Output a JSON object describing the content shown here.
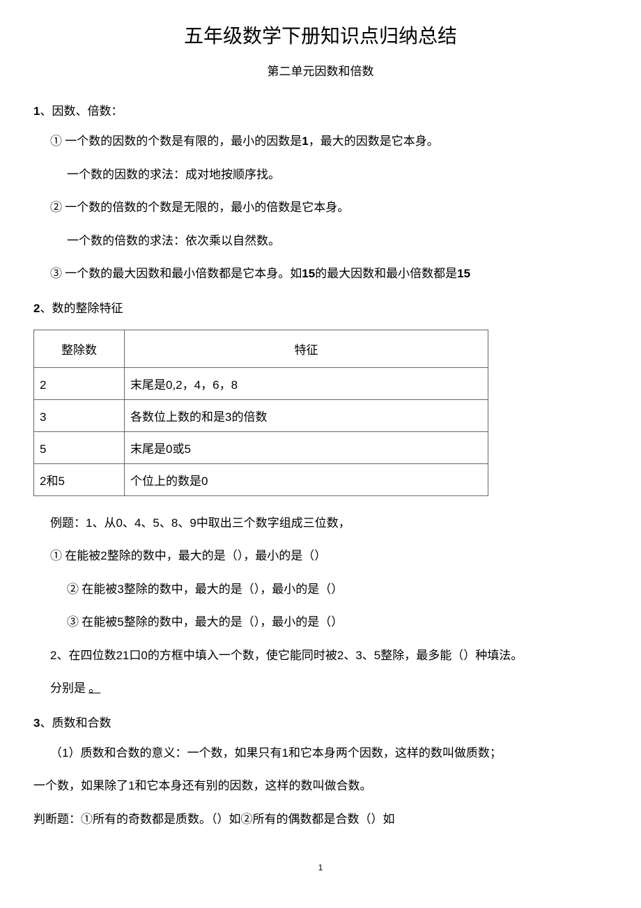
{
  "title": "五年级数学下册知识点归纳总结",
  "subtitle": "第二单元因数和倍数",
  "section1": {
    "num": "1",
    "heading": "、因数、倍数：",
    "item1_circled": "①",
    "item1_text": " 一个数的因数的个数是有限的，最小的因数是",
    "item1_num": "1",
    "item1_text2": "，最大的因数是它本身。",
    "item1b": "一个数的因数的求法：成对地按顺序找。",
    "item2_circled": "②",
    "item2_text": " 一个数的倍数的个数是无限的，最小的倍数是它本身。",
    "item2b": "一个数的倍数的求法：依次乘以自然数。",
    "item3_circled": "③",
    "item3_text": " 一个数的最大因数和最小倍数都是它本身。如",
    "item3_num1": "15",
    "item3_text2": "的最大因数和最小倍数都是",
    "item3_num2": "15"
  },
  "section2": {
    "num": "2",
    "heading": "、数的整除特征",
    "table": {
      "header1": "整除数",
      "header2": "特征",
      "rows": [
        {
          "col1": "2",
          "col2_a": "末尾是",
          "col2_b": "0,2",
          "col2_c": "，",
          "col2_d": "4",
          "col2_e": "，",
          "col2_f": "6",
          "col2_g": "，",
          "col2_h": "8"
        },
        {
          "col1": "3",
          "col2_a": "各数位上数的和是",
          "col2_b": "3",
          "col2_c": "的倍数"
        },
        {
          "col1": "5",
          "col2_a": "末尾是",
          "col2_b": "0",
          "col2_c": "或",
          "col2_d": "5"
        },
        {
          "col1_a": "2",
          "col1_b": "和",
          "col1_c": "5",
          "col2_a": "个位上的数是",
          "col2_b": "0"
        }
      ]
    },
    "example_label": "例题：",
    "example1_a": "1",
    "example1_b": "、从",
    "example1_c": "0",
    "example1_d": "、",
    "example1_e": "4",
    "example1_f": "、",
    "example1_g": "5",
    "example1_h": "、",
    "example1_i": "8",
    "example1_j": "、",
    "example1_k": "9",
    "example1_l": "中取出三个数字组成三位数，",
    "q1_circled": "①",
    "q1_a": " 在能被",
    "q1_b": "2",
    "q1_c": "整除的数中，最大的是（），最小的是（）",
    "q2_circled": "②",
    "q2_a": " 在能被",
    "q2_b": "3",
    "q2_c": "整除的数中，最大的是（），最小的是（）",
    "q3_circled": "③",
    "q3_a": " 在能被",
    "q3_b": "5",
    "q3_c": "整除的数中，最大的是（），最小的是（）",
    "example2_a": "2",
    "example2_b": "、在四位数",
    "example2_c": "21",
    "example2_d": "口",
    "example2_e": "0",
    "example2_f": "的方框中填入一个数，使它能同时被",
    "example2_g": "2",
    "example2_h": "、",
    "example2_i": "3",
    "example2_j": "、",
    "example2_k": "5",
    "example2_l": "整除，最多能（）种填法。",
    "example2_end": "分别是",
    "example2_underline": "。"
  },
  "section3": {
    "num": "3",
    "heading": "、质数和合数",
    "p1_a": "（",
    "p1_b": "1",
    "p1_c": "）质数和合数的意义：一个数，如果只有",
    "p1_d": "1",
    "p1_e": "和它本身两个因数，这样的数叫做质数；",
    "p2_a": "一个数，如果除了",
    "p2_b": "1",
    "p2_c": "和它本身还有别的因数，这样的数叫做合数。",
    "p3": "判断题：①所有的奇数都是质数。（）如②所有的偶数都是合数（）如"
  },
  "page_number": "1"
}
